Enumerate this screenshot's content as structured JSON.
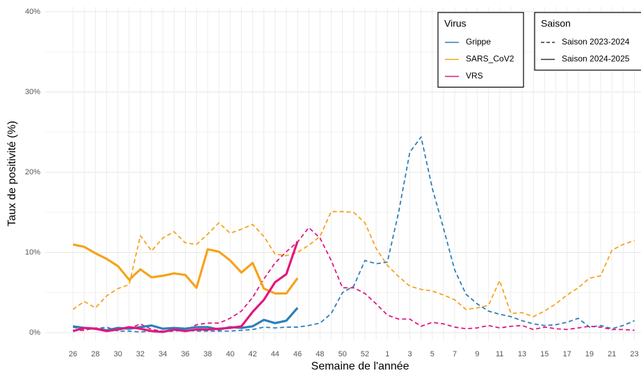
{
  "chart_data": {
    "type": "line",
    "xlabel": "Semaine de l'année",
    "ylabel": "Taux de positivité (%)",
    "categories": [
      "26",
      "27",
      "28",
      "29",
      "30",
      "31",
      "32",
      "33",
      "34",
      "35",
      "36",
      "37",
      "38",
      "39",
      "40",
      "41",
      "42",
      "43",
      "44",
      "45",
      "46",
      "47",
      "48",
      "49",
      "50",
      "51",
      "52",
      "53",
      "1",
      "2",
      "3",
      "4",
      "5",
      "6",
      "7",
      "8",
      "9",
      "10",
      "11",
      "12",
      "13",
      "14",
      "15",
      "16",
      "17",
      "18",
      "19",
      "20",
      "21",
      "22",
      "23"
    ],
    "ylim": [
      -0.95,
      40.6
    ],
    "yticks": [
      {
        "value": 0,
        "label": "0%"
      },
      {
        "value": 10,
        "label": "10%"
      },
      {
        "value": 20,
        "label": "20%"
      },
      {
        "value": 30,
        "label": "30%"
      },
      {
        "value": 40,
        "label": "40%"
      }
    ],
    "grid": true,
    "legends": [
      {
        "title": "Virus",
        "entries": [
          {
            "name": "Grippe",
            "color": "#2c7fb8"
          },
          {
            "name": "SARS_CoV2",
            "color": "#f7a21b"
          },
          {
            "name": "VRS",
            "color": "#e3167f"
          }
        ]
      },
      {
        "title": "Saison",
        "entries": [
          {
            "name": "Saison 2023-2024",
            "linetype": "dashed"
          },
          {
            "name": "Saison 2024-2025",
            "linetype": "solid"
          }
        ]
      }
    ],
    "series": [
      {
        "virus": "SARS_CoV2",
        "season": "Saison 2023-2024",
        "values": [
          2.9,
          3.9,
          3.1,
          4.6,
          5.5,
          6.0,
          12.1,
          10.2,
          11.8,
          12.6,
          11.2,
          11.0,
          12.3,
          13.7,
          12.4,
          12.9,
          13.5,
          12.0,
          9.8,
          9.6,
          10.0,
          10.9,
          12.0,
          15.1,
          15.1,
          15.0,
          13.7,
          10.5,
          8.4,
          7.0,
          5.8,
          5.4,
          5.2,
          4.7,
          4.1,
          2.9,
          3.1,
          3.4,
          6.5,
          2.4,
          2.5,
          2.0,
          2.7,
          3.6,
          4.7,
          5.6,
          6.8,
          7.1,
          10.3,
          11.0,
          11.5
        ]
      },
      {
        "virus": "Grippe",
        "season": "Saison 2023-2024",
        "values": [
          0.7,
          0.4,
          0.5,
          0.7,
          0.2,
          0.2,
          0.1,
          0.2,
          0.1,
          0.2,
          0.3,
          0.2,
          0.2,
          0.2,
          0.2,
          0.3,
          0.4,
          0.7,
          0.6,
          0.7,
          0.7,
          0.9,
          1.2,
          2.4,
          5.0,
          5.8,
          9.0,
          8.6,
          8.8,
          15.0,
          22.5,
          24.4,
          18.0,
          13.0,
          7.8,
          4.8,
          3.6,
          2.7,
          2.3,
          2.0,
          1.5,
          1.1,
          0.9,
          1.0,
          1.3,
          1.8,
          0.7,
          0.9,
          0.5,
          0.9,
          1.5
        ]
      },
      {
        "virus": "VRS",
        "season": "Saison 2023-2024",
        "values": [
          0.3,
          0.3,
          0.6,
          0.4,
          0.5,
          0.5,
          1.1,
          0.4,
          0.2,
          0.3,
          0.3,
          1.0,
          1.2,
          1.2,
          1.8,
          2.7,
          4.4,
          6.7,
          8.7,
          10.1,
          11.3,
          13.1,
          11.8,
          9.0,
          5.6,
          5.6,
          4.9,
          3.6,
          2.2,
          1.7,
          1.7,
          0.8,
          1.3,
          1.1,
          0.7,
          0.5,
          0.6,
          0.9,
          0.6,
          0.8,
          0.9,
          0.4,
          0.7,
          0.5,
          0.4,
          0.6,
          0.8,
          0.7,
          0.4,
          0.4,
          0.3
        ]
      },
      {
        "virus": "SARS_CoV2",
        "season": "Saison 2024-2025",
        "values": [
          11.0,
          10.7,
          9.9,
          9.2,
          8.3,
          6.6,
          7.9,
          6.9,
          7.1,
          7.4,
          7.2,
          5.6,
          10.4,
          10.1,
          9.0,
          7.5,
          8.7,
          5.5,
          4.9,
          4.9,
          6.8,
          null,
          null,
          null,
          null,
          null,
          null,
          null,
          null,
          null,
          null,
          null,
          null,
          null,
          null,
          null,
          null,
          null,
          null,
          null,
          null,
          null,
          null,
          null,
          null,
          null,
          null,
          null,
          null,
          null,
          null
        ]
      },
      {
        "virus": "Grippe",
        "season": "Saison 2024-2025",
        "values": [
          0.8,
          0.6,
          0.5,
          0.3,
          0.6,
          0.5,
          0.7,
          0.9,
          0.5,
          0.6,
          0.5,
          0.7,
          0.7,
          0.4,
          0.7,
          0.6,
          0.8,
          1.6,
          1.2,
          1.5,
          3.1,
          null,
          null,
          null,
          null,
          null,
          null,
          null,
          null,
          null,
          null,
          null,
          null,
          null,
          null,
          null,
          null,
          null,
          null,
          null,
          null,
          null,
          null,
          null,
          null,
          null,
          null,
          null,
          null,
          null,
          null
        ]
      },
      {
        "virus": "VRS",
        "season": "Saison 2024-2025",
        "values": [
          0.2,
          0.6,
          0.5,
          0.2,
          0.4,
          0.7,
          0.5,
          0.2,
          0.1,
          0.4,
          0.2,
          0.4,
          0.4,
          0.5,
          0.6,
          0.8,
          2.6,
          4.1,
          6.3,
          7.3,
          11.4,
          null,
          null,
          null,
          null,
          null,
          null,
          null,
          null,
          null,
          null,
          null,
          null,
          null,
          null,
          null,
          null,
          null,
          null,
          null,
          null,
          null,
          null,
          null,
          null,
          null,
          null,
          null,
          null,
          null,
          null
        ]
      }
    ]
  }
}
